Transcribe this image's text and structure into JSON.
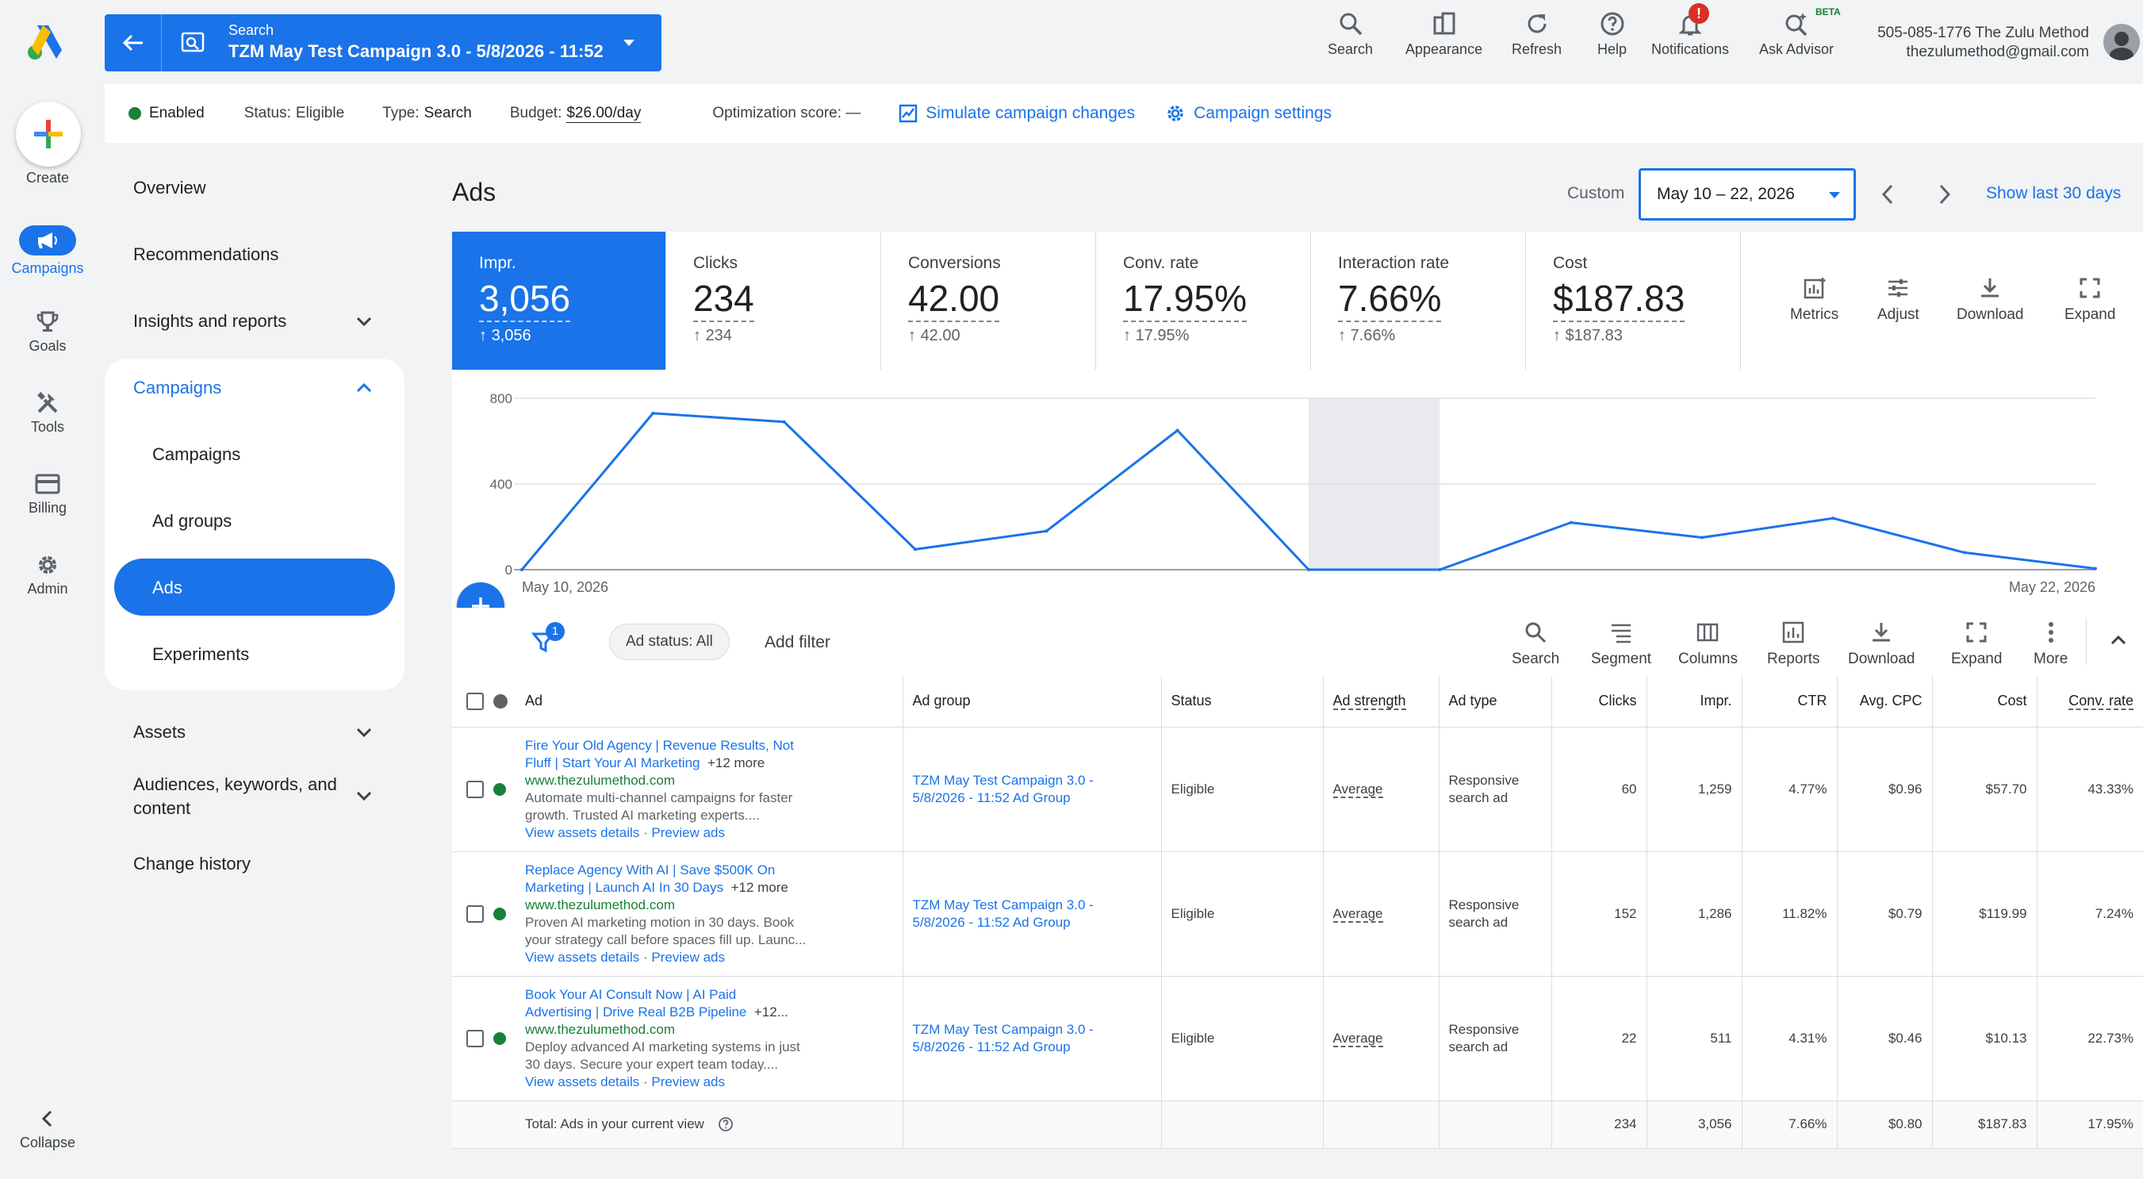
{
  "rail": {
    "create_label": "Create",
    "items": [
      {
        "label": "Campaigns",
        "icon": "megaphone-icon",
        "active": true
      },
      {
        "label": "Goals",
        "icon": "trophy-icon"
      },
      {
        "label": "Tools",
        "icon": "tools-icon"
      },
      {
        "label": "Billing",
        "icon": "credit-card-icon"
      },
      {
        "label": "Admin",
        "icon": "gear-icon"
      }
    ],
    "collapse_label": "Collapse"
  },
  "header": {
    "campaign_type": "Search",
    "campaign_name": "TZM May Test Campaign 3.0 - 5/8/2026 - 11:52",
    "buttons": [
      {
        "label": "Search",
        "icon": "search-icon"
      },
      {
        "label": "Appearance",
        "icon": "appearance-icon"
      },
      {
        "label": "Refresh",
        "icon": "refresh-icon"
      },
      {
        "label": "Help",
        "icon": "help-icon"
      },
      {
        "label": "Notifications",
        "icon": "bell-icon",
        "badge": "!"
      },
      {
        "label": "Ask Advisor",
        "icon": "advisor-icon",
        "tag": "BETA"
      }
    ],
    "account_line1": "505-085-1776 The Zulu Method",
    "account_line2": "thezulumethod@gmail.com"
  },
  "strip": {
    "enabled": "Enabled",
    "status_label": "Status:",
    "status_value": "Eligible",
    "type_label": "Type:",
    "type_value": "Search",
    "budget_label": "Budget:",
    "budget_value": "$26.00/day",
    "opt_label": "Optimization score: —",
    "simulate": "Simulate campaign changes",
    "settings": "Campaign settings"
  },
  "sidenav": {
    "overview": "Overview",
    "recommendations": "Recommendations",
    "insights": "Insights and reports",
    "campaigns_group": "Campaigns",
    "campaigns": "Campaigns",
    "ad_groups": "Ad groups",
    "ads": "Ads",
    "experiments": "Experiments",
    "assets": "Assets",
    "audiences_1": "Audiences, keywords, and",
    "audiences_2": "content",
    "change_history": "Change history"
  },
  "main": {
    "title": "Ads",
    "custom": "Custom",
    "date_range": "May 10 – 22, 2026",
    "show_last": "Show last 30 days"
  },
  "cards": [
    {
      "title": "Impr.",
      "value": "3,056",
      "delta": "3,056",
      "selected": true
    },
    {
      "title": "Clicks",
      "value": "234",
      "delta": "234"
    },
    {
      "title": "Conversions",
      "value": "42.00",
      "delta": "42.00"
    },
    {
      "title": "Conv. rate",
      "value": "17.95%",
      "delta": "17.95%"
    },
    {
      "title": "Interaction rate",
      "value": "7.66%",
      "delta": "7.66%"
    },
    {
      "title": "Cost",
      "value": "$187.83",
      "delta": "$187.83"
    }
  ],
  "card_tools": [
    "Metrics",
    "Adjust",
    "Download",
    "Expand"
  ],
  "chart_data": {
    "type": "line",
    "x": [
      "May 10, 2026",
      "May 11",
      "May 12",
      "May 13",
      "May 14",
      "May 15",
      "May 16",
      "May 17",
      "May 18",
      "May 19",
      "May 20",
      "May 21",
      "May 22, 2026"
    ],
    "series": [
      {
        "values": [
          0,
          730,
          690,
          95,
          180,
          650,
          0,
          0,
          220,
          150,
          240,
          80,
          5
        ]
      }
    ],
    "ylim": [
      0,
      800
    ],
    "yticks": [
      "0",
      "400",
      "800"
    ],
    "xlabel_start": "May 10, 2026",
    "xlabel_end": "May 22, 2026",
    "highlight_day_index": 6,
    "line_color": "#1a73e8",
    "grid": true
  },
  "filters": {
    "badge": "1",
    "ad_status": "Ad status: All",
    "add_filter": "Add filter"
  },
  "table_tools": [
    "Search",
    "Segment",
    "Columns",
    "Reports",
    "Download",
    "Expand",
    "More"
  ],
  "table": {
    "headers": [
      "Ad",
      "Ad group",
      "Status",
      "Ad strength",
      "Ad type",
      "Clicks",
      "Impr.",
      "CTR",
      "Avg. CPC",
      "Cost",
      "Conv. rate"
    ],
    "rows": [
      {
        "headline1": "Fire Your Old Agency | Revenue Results, Not",
        "headline2": "Fluff | Start Your AI Marketing",
        "more": "+12 more",
        "url": "www.thezulumethod.com",
        "desc1": "Automate multi-channel campaigns for faster",
        "desc2": "growth. Trusted AI marketing experts....",
        "assets": "View assets details",
        "preview": "Preview ads",
        "ad_group_1": "TZM May Test Campaign 3.0 -",
        "ad_group_2": "5/8/2026 - 11:52 Ad Group",
        "status": "Eligible",
        "strength": "Average",
        "type_1": "Responsive",
        "type_2": "search ad",
        "clicks": "60",
        "impr": "1,259",
        "ctr": "4.77%",
        "cpc": "$0.96",
        "cost": "$57.70",
        "conv": "43.33%"
      },
      {
        "headline1": "Replace Agency With AI | Save $500K On",
        "headline2": "Marketing | Launch AI In 30 Days",
        "more": "+12 more",
        "url": "www.thezulumethod.com",
        "desc1": "Proven AI marketing motion in 30 days. Book",
        "desc2": "your strategy call before spaces fill up. Launc...",
        "assets": "View assets details",
        "preview": "Preview ads",
        "ad_group_1": "TZM May Test Campaign 3.0 -",
        "ad_group_2": "5/8/2026 - 11:52 Ad Group",
        "status": "Eligible",
        "strength": "Average",
        "type_1": "Responsive",
        "type_2": "search ad",
        "clicks": "152",
        "impr": "1,286",
        "ctr": "11.82%",
        "cpc": "$0.79",
        "cost": "$119.99",
        "conv": "7.24%"
      },
      {
        "headline1": "Book Your AI Consult Now | AI Paid",
        "headline2": "Advertising | Drive Real B2B Pipeline",
        "more": "+12...",
        "url": "www.thezulumethod.com",
        "desc1": "Deploy advanced AI marketing systems in just",
        "desc2": "30 days. Secure your expert team today....",
        "assets": "View assets details",
        "preview": "Preview ads",
        "ad_group_1": "TZM May Test Campaign 3.0 -",
        "ad_group_2": "5/8/2026 - 11:52 Ad Group",
        "status": "Eligible",
        "strength": "Average",
        "type_1": "Responsive",
        "type_2": "search ad",
        "clicks": "22",
        "impr": "511",
        "ctr": "4.31%",
        "cpc": "$0.46",
        "cost": "$10.13",
        "conv": "22.73%"
      }
    ],
    "total": {
      "label": "Total: Ads in your current view",
      "clicks": "234",
      "impr": "3,056",
      "ctr": "7.66%",
      "cpc": "$0.80",
      "cost": "$187.83",
      "conv": "17.95%"
    }
  },
  "colors": {
    "accent": "#1a73e8",
    "enabled": "#188038"
  }
}
